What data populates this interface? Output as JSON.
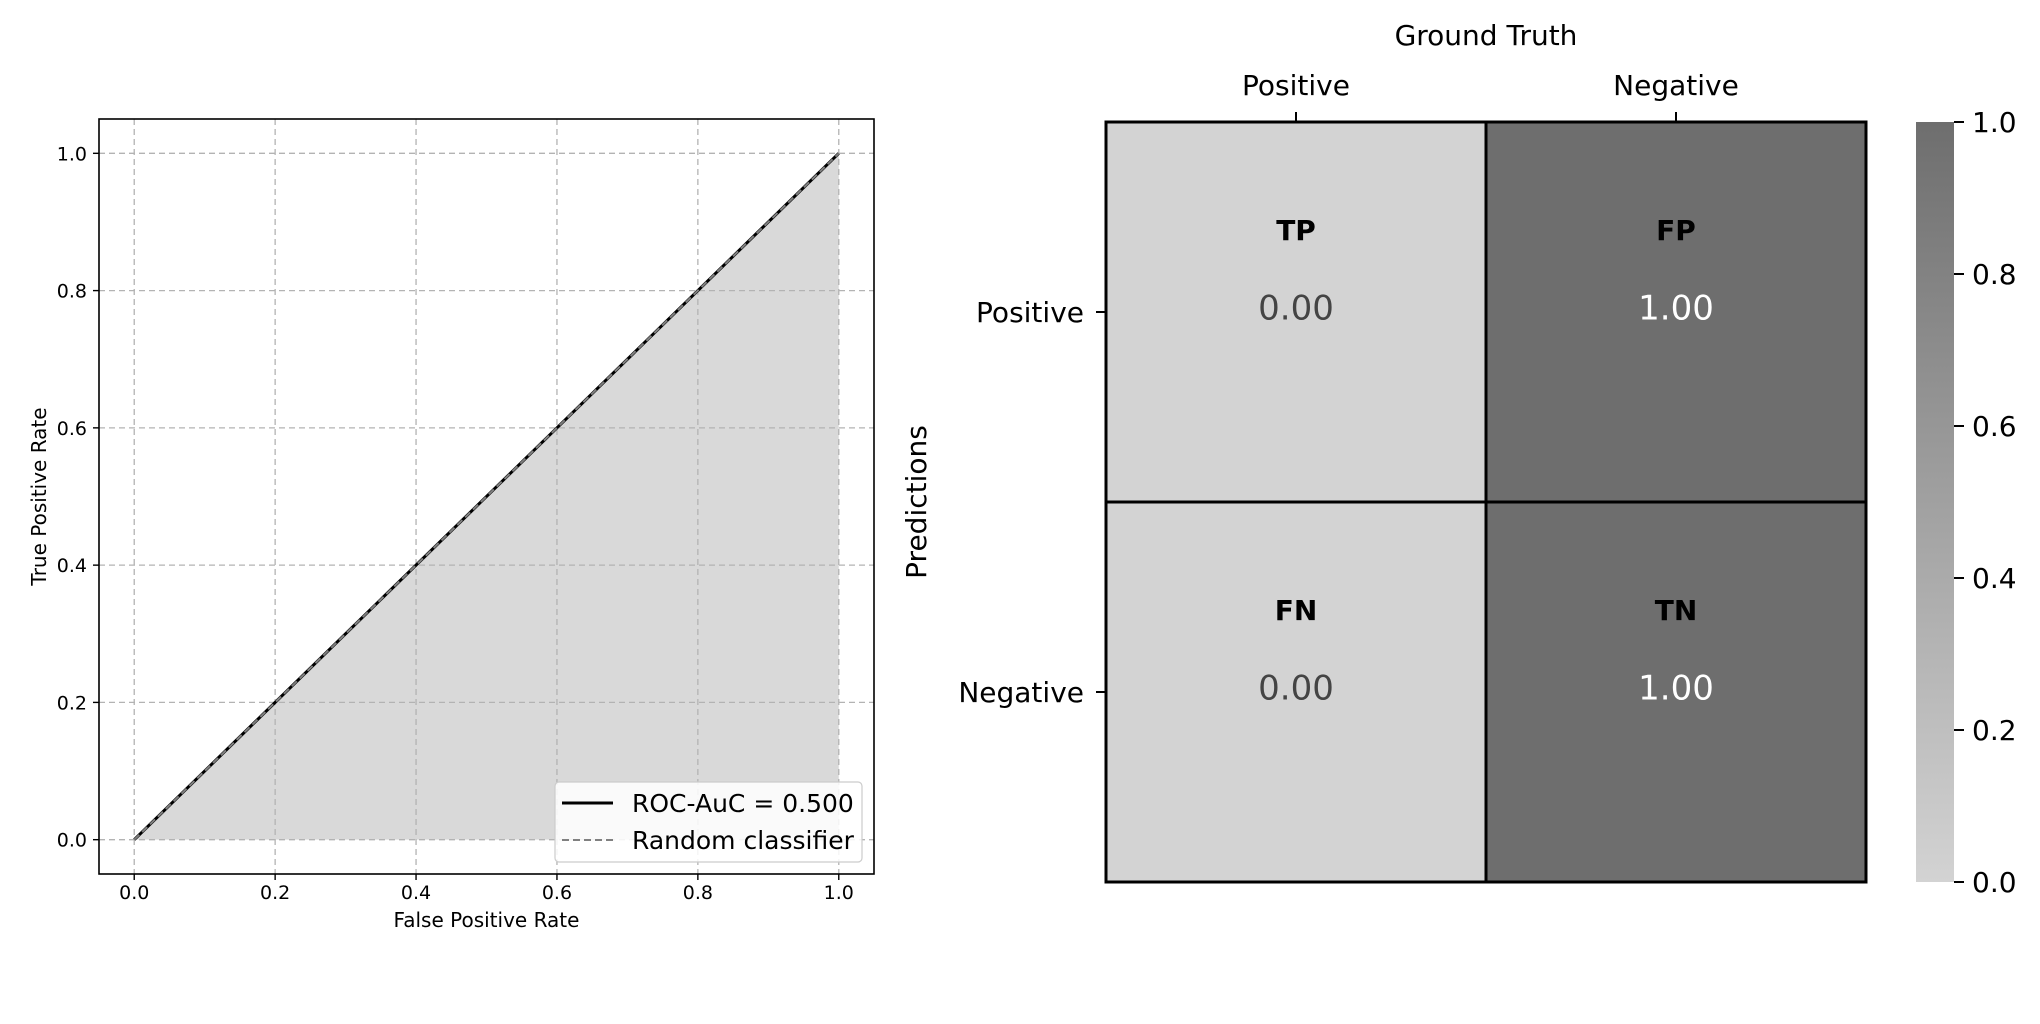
{
  "chart_data": [
    {
      "type": "line",
      "xlabel": "False Positive Rate",
      "ylabel": "True Positive Rate",
      "xlim": [
        -0.05,
        1.05
      ],
      "ylim": [
        -0.05,
        1.05
      ],
      "xticks": [
        0.0,
        0.2,
        0.4,
        0.6,
        0.8,
        1.0
      ],
      "yticks": [
        0.0,
        0.2,
        0.4,
        0.6,
        0.8,
        1.0
      ],
      "xtick_labels": [
        "0.0",
        "0.2",
        "0.4",
        "0.6",
        "0.8",
        "1.0"
      ],
      "ytick_labels": [
        "0.0",
        "0.2",
        "0.4",
        "0.6",
        "0.8",
        "1.0"
      ],
      "grid": true,
      "legend_position": "bottom-right",
      "series": [
        {
          "name": "ROC-AuC = 0.500",
          "style": "solid",
          "color": "#000000",
          "fill_under": true,
          "fill_color": "#d9d9d9",
          "x": [
            0.0,
            1.0
          ],
          "y": [
            0.0,
            1.0
          ]
        },
        {
          "name": "Random classifier",
          "style": "dashed",
          "color": "#808080",
          "x": [
            0.0,
            1.0
          ],
          "y": [
            0.0,
            1.0
          ]
        }
      ]
    },
    {
      "type": "heatmap",
      "xlabel": "Ground Truth",
      "ylabel": "Predictions",
      "x_categories": [
        "Positive",
        "Negative"
      ],
      "y_categories": [
        "Positive",
        "Negative"
      ],
      "cells": [
        [
          {
            "name": "TP",
            "value": 0.0,
            "label": "0.00"
          },
          {
            "name": "FP",
            "value": 1.0,
            "label": "1.00"
          }
        ],
        [
          {
            "name": "FN",
            "value": 0.0,
            "label": "0.00"
          },
          {
            "name": "TN",
            "value": 1.0,
            "label": "1.00"
          }
        ]
      ],
      "colorbar": {
        "range": [
          0.0,
          1.0
        ],
        "ticks": [
          0.0,
          0.2,
          0.4,
          0.6,
          0.8,
          1.0
        ],
        "tick_labels": [
          "0.0",
          "0.2",
          "0.4",
          "0.6",
          "0.8",
          "1.0"
        ],
        "color_low": "#d3d3d3",
        "color_high": "#6e6e6e"
      }
    }
  ]
}
